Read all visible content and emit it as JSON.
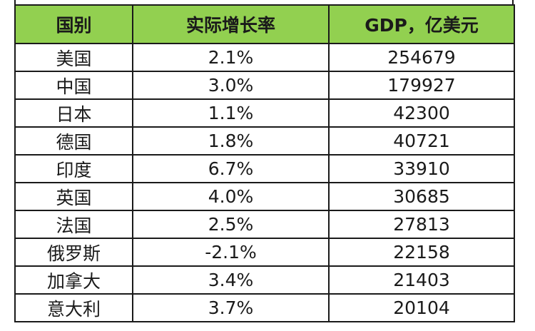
{
  "table": {
    "headers": [
      "国别",
      "实际增长率",
      "GDP，亿美元"
    ],
    "rows": [
      [
        "美国",
        "2.1%",
        "254679"
      ],
      [
        "中国",
        "3.0%",
        "179927"
      ],
      [
        "日本",
        "1.1%",
        "42300"
      ],
      [
        "德国",
        "1.8%",
        "40721"
      ],
      [
        "印度",
        "6.7%",
        "33910"
      ],
      [
        "英国",
        "4.0%",
        "30685"
      ],
      [
        "法国",
        "2.5%",
        "27813"
      ],
      [
        "俄罗斯",
        "-2.1%",
        "22158"
      ],
      [
        "加拿大",
        "3.4%",
        "21403"
      ],
      [
        "意大利",
        "3.7%",
        "20104"
      ]
    ]
  },
  "colors": {
    "header_bg": "#92d050",
    "border": "#1a1a1a",
    "text": "#1a1a1a"
  }
}
